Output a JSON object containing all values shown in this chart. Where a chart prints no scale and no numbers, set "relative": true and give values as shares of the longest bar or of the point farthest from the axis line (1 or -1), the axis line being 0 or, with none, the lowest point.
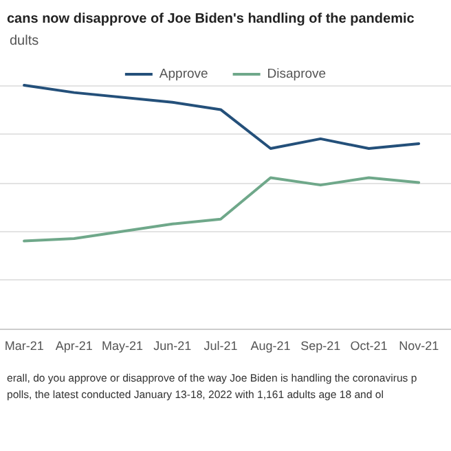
{
  "chart_data": {
    "type": "line",
    "title": "cans now disapprove of Joe Biden's handling of the pandemic",
    "subtitle": "dults",
    "x": [
      "2021-03",
      "2021-04",
      "2021-06",
      "2021-07",
      "2021-08",
      "2021-09",
      "2021-10",
      "2021-11"
    ],
    "series": [
      {
        "name": "Approve",
        "color": "#24507a",
        "values": [
          1.0,
          0.97,
          0.93,
          0.9,
          0.74,
          0.78,
          0.74,
          0.76
        ]
      },
      {
        "name": "Disaprove",
        "color": "#6fa88a",
        "values": [
          0.36,
          0.37,
          0.43,
          0.45,
          0.62,
          0.59,
          0.62,
          0.6
        ]
      }
    ],
    "relative": true,
    "xlim": [
      "2021-02-14",
      "2021-11-21"
    ],
    "xticks": [
      {
        "value": "2021-03",
        "label": "Mar-21"
      },
      {
        "value": "2021-04",
        "label": "Apr-21"
      },
      {
        "value": "2021-05",
        "label": "May-21"
      },
      {
        "value": "2021-06",
        "label": "Jun-21"
      },
      {
        "value": "2021-07",
        "label": "Jul-21"
      },
      {
        "value": "2021-08",
        "label": "Aug-21"
      },
      {
        "value": "2021-09",
        "label": "Sep-21"
      },
      {
        "value": "2021-10",
        "label": "Oct-21"
      },
      {
        "value": "2021-11",
        "label": "Nov-21"
      }
    ],
    "annotations": [
      "erall, do you approve or disapprove of the way Joe Biden is handling the coronavirus p",
      "polls, the latest conducted January 13-18, 2022 with 1,161 adults age 18 and ol"
    ],
    "grid": "y",
    "legend": "top",
    "marker": "none",
    "line_style": "solid"
  }
}
